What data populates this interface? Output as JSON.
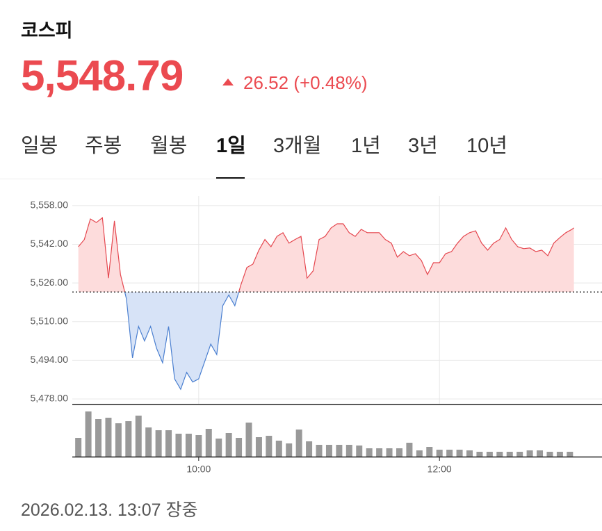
{
  "header": {
    "title": "코스피",
    "price": "5,548.79",
    "change": "26.52",
    "change_pct": "(+0.48%)"
  },
  "tabs": [
    "일봉",
    "주봉",
    "월봉",
    "1일",
    "3개월",
    "1년",
    "3년",
    "10년"
  ],
  "active_tab": 3,
  "timestamp": "2026.02.13. 13:07 장중",
  "chart_data": [
    {
      "type": "line",
      "x": [
        "09:00",
        "09:03",
        "09:06",
        "09:09",
        "09:12",
        "09:15",
        "09:18",
        "09:21",
        "09:24",
        "09:27",
        "09:30",
        "09:33",
        "09:36",
        "09:39",
        "09:42",
        "09:45",
        "09:48",
        "09:51",
        "09:54",
        "09:57",
        "10:00",
        "10:03",
        "10:06",
        "10:09",
        "10:12",
        "10:15",
        "10:18",
        "10:21",
        "10:24",
        "10:27",
        "10:30",
        "10:33",
        "10:36",
        "10:39",
        "10:42",
        "10:45",
        "10:48",
        "10:51",
        "10:54",
        "10:57",
        "11:00",
        "11:03",
        "11:06",
        "11:09",
        "11:12",
        "11:15",
        "11:18",
        "11:21",
        "11:24",
        "11:27",
        "11:30",
        "11:33",
        "11:36",
        "11:39",
        "11:42",
        "11:45",
        "11:48",
        "11:51",
        "11:54",
        "11:57",
        "12:00",
        "12:03",
        "12:06",
        "12:09",
        "12:12",
        "12:15",
        "12:18",
        "12:21",
        "12:24",
        "12:27",
        "12:30",
        "12:33",
        "12:36",
        "12:39",
        "12:42",
        "12:45",
        "12:48",
        "12:51",
        "12:54",
        "12:57",
        "13:00",
        "13:03",
        "13:06",
        "13:07"
      ],
      "values": [
        5541,
        5544,
        5552.5,
        5551,
        5553,
        5528,
        5551.7,
        5529.5,
        5519.4,
        5495,
        5508,
        5502,
        5508,
        5499,
        5493,
        5508,
        5486.3,
        5482,
        5489,
        5485,
        5486.3,
        5493.5,
        5500.7,
        5496.4,
        5516.6,
        5521,
        5516.6,
        5525.2,
        5532.4,
        5533.8,
        5539.6,
        5544,
        5541,
        5545.3,
        5546.8,
        5542.5,
        5544,
        5545.3,
        5528,
        5531,
        5544,
        5545.3,
        5548.8,
        5550.5,
        5550.5,
        5546.8,
        5545.3,
        5548.2,
        5546.8,
        5546.8,
        5546.8,
        5544,
        5542.5,
        5536.7,
        5539,
        5537.3,
        5538.1,
        5535.3,
        5529.5,
        5534.4,
        5534.4,
        5538.1,
        5539,
        5542.5,
        5545.3,
        5546.8,
        5547.6,
        5542.5,
        5539.6,
        5542.5,
        5544,
        5548.8,
        5544,
        5541,
        5540.2,
        5540.5,
        5539,
        5539.6,
        5537.3,
        5542.5,
        5544.8,
        5546.8,
        5548.2,
        5548.79
      ],
      "baseline": 5522.27,
      "up_color": "#e5474f",
      "down_color": "#4a7fd0",
      "up_fill": "#fddcdc",
      "down_fill": "#d7e3f7",
      "xlim": [
        "08:57",
        "13:21"
      ],
      "ylim": [
        5476,
        5562
      ],
      "yticks": [
        {
          "value": 5478,
          "label": "5,478.00"
        },
        {
          "value": 5494,
          "label": "5,494.00"
        },
        {
          "value": 5510,
          "label": "5,510.00"
        },
        {
          "value": 5526,
          "label": "5,526.00"
        },
        {
          "value": 5542,
          "label": "5,542.00"
        },
        {
          "value": 5558,
          "label": "5,558.00"
        }
      ],
      "grid": true
    },
    {
      "type": "bar",
      "x": [
        "09:00",
        "09:05",
        "09:10",
        "09:15",
        "09:20",
        "09:25",
        "09:30",
        "09:35",
        "09:40",
        "09:45",
        "09:50",
        "09:55",
        "10:00",
        "10:05",
        "10:10",
        "10:15",
        "10:20",
        "10:25",
        "10:30",
        "10:35",
        "10:40",
        "10:45",
        "10:50",
        "10:55",
        "11:00",
        "11:05",
        "11:10",
        "11:15",
        "11:20",
        "11:25",
        "11:30",
        "11:35",
        "11:40",
        "11:45",
        "11:50",
        "11:55",
        "12:00",
        "12:05",
        "12:10",
        "12:15",
        "12:20",
        "12:25",
        "12:30",
        "12:35",
        "12:40",
        "12:45",
        "12:50",
        "12:55",
        "13:00",
        "13:05"
      ],
      "values": [
        27,
        65,
        54,
        56,
        48,
        51,
        59,
        42,
        38,
        38,
        33,
        33,
        31,
        40,
        26,
        34,
        27,
        49,
        28,
        30,
        23,
        19,
        39,
        22,
        17,
        17,
        17,
        17,
        16,
        12,
        12,
        12,
        12,
        20,
        9,
        14,
        10,
        10,
        10,
        9,
        7,
        7,
        7,
        7,
        7,
        9,
        9,
        7,
        7,
        7
      ],
      "color": "#999999",
      "xlim": [
        "08:57",
        "13:21"
      ],
      "ylim": [
        0,
        72
      ],
      "xticks": [
        {
          "value": "10:00",
          "label": "10:00"
        },
        {
          "value": "12:00",
          "label": "12:00"
        }
      ]
    }
  ]
}
